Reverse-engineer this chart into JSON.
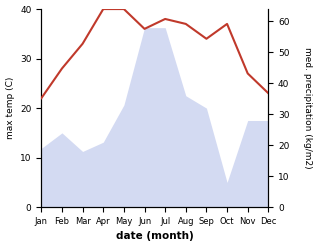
{
  "months": [
    "Jan",
    "Feb",
    "Mar",
    "Apr",
    "May",
    "Jun",
    "Jul",
    "Aug",
    "Sep",
    "Oct",
    "Nov",
    "Dec"
  ],
  "temperature": [
    22,
    28,
    33,
    40,
    40,
    36,
    38,
    37,
    34,
    37,
    27,
    23
  ],
  "precipitation": [
    19,
    24,
    18,
    21,
    33,
    58,
    58,
    36,
    32,
    8,
    28,
    28
  ],
  "temp_color": "#c0392b",
  "precip_color_fill": "#b0bce8",
  "temp_ylim": [
    0,
    40
  ],
  "precip_ylim": [
    0,
    64
  ],
  "temp_yticks": [
    0,
    10,
    20,
    30,
    40
  ],
  "precip_yticks": [
    0,
    10,
    20,
    30,
    40,
    50,
    60
  ],
  "ylabel_left": "max temp (C)",
  "ylabel_right": "med. precipitation (kg/m2)",
  "xlabel": "date (month)",
  "bg_color": "#ffffff"
}
